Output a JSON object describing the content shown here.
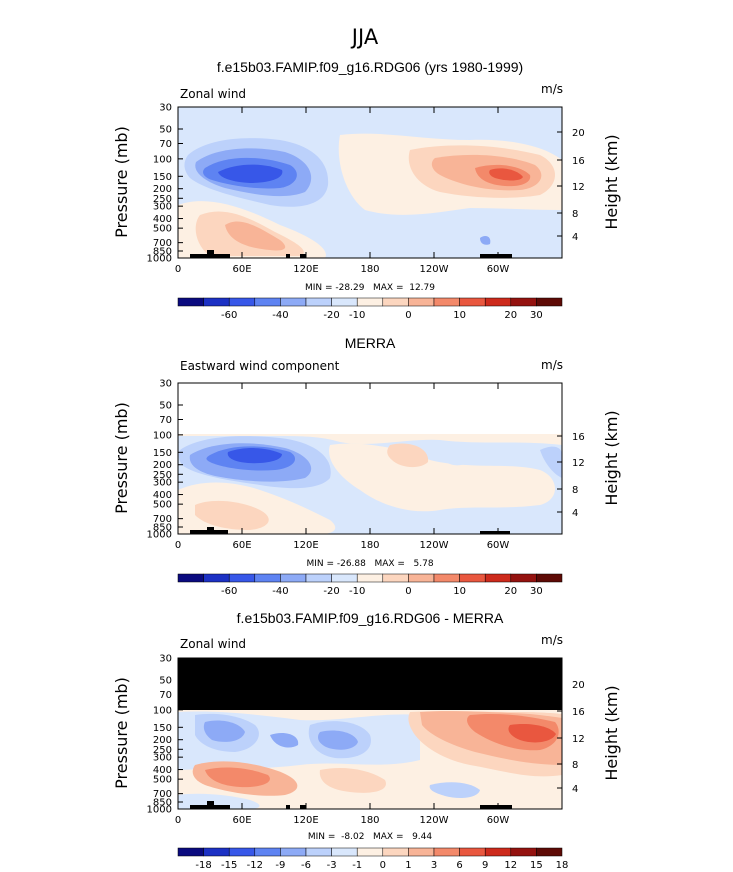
{
  "figure": {
    "title": "JJA"
  },
  "colors": {
    "palette_top": [
      "#0a0a7f",
      "#1c31c4",
      "#3757e8",
      "#5e83f2",
      "#8daaf6",
      "#bcd1fb",
      "#d9e7fc",
      "#fdf0e3",
      "#fcd6bf",
      "#f8b497",
      "#f3896a",
      "#e9573f",
      "#cd2a1c",
      "#94120f",
      "#5e0a06"
    ],
    "palette_diff": [
      "#0a0a7f",
      "#1c31c4",
      "#3757e8",
      "#5e83f2",
      "#8daaf6",
      "#bcd1fb",
      "#d9e7fc",
      "#fdf0e3",
      "#fcd6bf",
      "#f8b497",
      "#f3896a",
      "#e9573f",
      "#cd2a1c",
      "#94120f",
      "#5e0a06"
    ],
    "missing": "#000000"
  },
  "chart_data": [
    {
      "type": "heatmap",
      "title": "f.e15b03.FAMIP.f09_g16.RDG06 (yrs 1980-1999)",
      "left_label": "Zonal wind",
      "right_label": "m/s",
      "xlabel": "",
      "ylabel": "Pressure (mb)",
      "ylabel_right": "Height (km)",
      "x_ticks": [
        "0",
        "60E",
        "120E",
        "180",
        "120W",
        "60W"
      ],
      "y_ticks": [
        "30",
        "50",
        "70",
        "100",
        "150",
        "200",
        "250",
        "300",
        "400",
        "500",
        "700",
        "850",
        "1000"
      ],
      "height_ticks": [
        "20",
        "16",
        "12",
        "8",
        "4"
      ],
      "stats": "MIN = -28.29   MAX =  12.79",
      "colorbar_labels": [
        "-60",
        "-40",
        "-20",
        "-10",
        "0",
        "10",
        "20",
        "30"
      ],
      "features": [
        {
          "kind": "jet-core",
          "lon": 80,
          "p": 150,
          "value": -28.29
        },
        {
          "kind": "jet-core",
          "lon": 305,
          "p": 150,
          "value": 12.79
        },
        {
          "kind": "low-level",
          "lon": 70,
          "p": 600,
          "value": 6
        }
      ]
    },
    {
      "type": "heatmap",
      "title": "MERRA",
      "left_label": "Eastward wind component",
      "right_label": "m/s",
      "xlabel": "",
      "ylabel": "Pressure (mb)",
      "ylabel_right": "Height (km)",
      "x_ticks": [
        "0",
        "60E",
        "120E",
        "180",
        "120W",
        "60W"
      ],
      "y_ticks": [
        "30",
        "50",
        "70",
        "100",
        "150",
        "200",
        "250",
        "300",
        "400",
        "500",
        "700",
        "850",
        "1000"
      ],
      "height_ticks": [
        "16",
        "12",
        "8",
        "4"
      ],
      "stats": "MIN = -26.88   MAX =   5.78",
      "colorbar_labels": [
        "-60",
        "-40",
        "-20",
        "-10",
        "0",
        "10",
        "20",
        "30"
      ],
      "features": [
        {
          "kind": "jet-core",
          "lon": 85,
          "p": 150,
          "value": -26.88
        },
        {
          "kind": "jet-core",
          "lon": 220,
          "p": 170,
          "value": 5.78
        }
      ]
    },
    {
      "type": "heatmap",
      "title": "f.e15b03.FAMIP.f09_g16.RDG06 - MERRA",
      "left_label": "Zonal wind",
      "right_label": "m/s",
      "xlabel": "",
      "ylabel": "Pressure (mb)",
      "ylabel_right": "Height (km)",
      "x_ticks": [
        "0",
        "60E",
        "120E",
        "180",
        "120W",
        "60W"
      ],
      "y_ticks": [
        "30",
        "50",
        "70",
        "100",
        "150",
        "200",
        "250",
        "300",
        "400",
        "500",
        "700",
        "850",
        "1000"
      ],
      "height_ticks": [
        "20",
        "16",
        "12",
        "8",
        "4"
      ],
      "stats": "MIN =  -8.02   MAX =   9.44",
      "colorbar_labels": [
        "-18",
        "-15",
        "-12",
        "-9",
        "-6",
        "-3",
        "-1",
        "0",
        "1",
        "3",
        "6",
        "9",
        "12",
        "15",
        "18"
      ],
      "features": [
        {
          "kind": "difference-max",
          "lon": 320,
          "p": 170,
          "value": 9.44
        },
        {
          "kind": "difference-min",
          "lon": 40,
          "p": 200,
          "value": -8.02
        }
      ]
    }
  ]
}
